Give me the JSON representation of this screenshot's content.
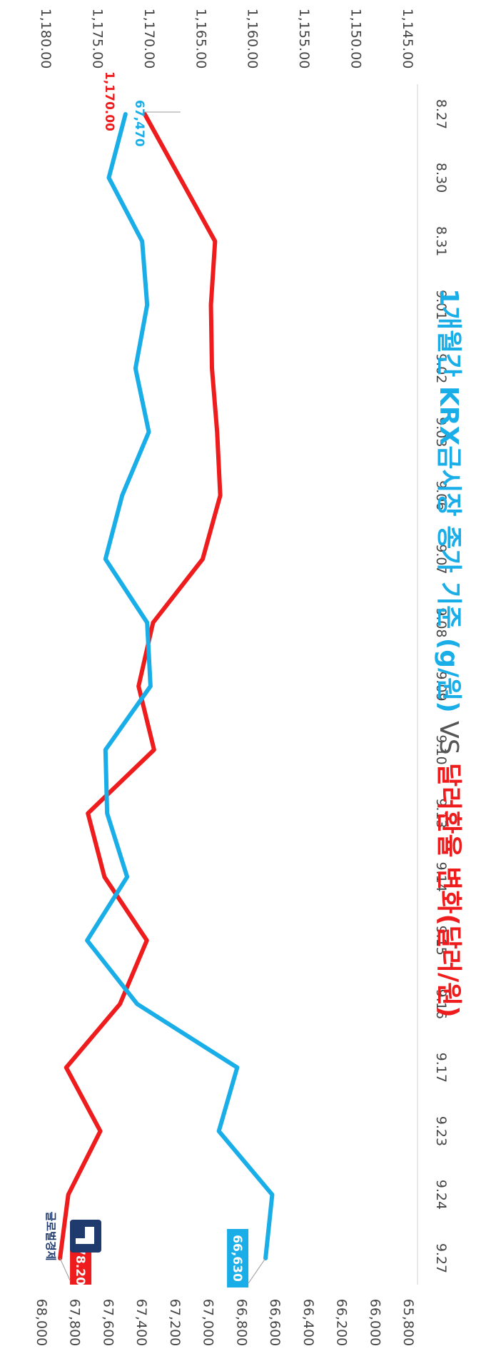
{
  "chart_data": {
    "type": "line",
    "title_parts": [
      {
        "text": "1개월간 KRX금시장 종가 기준 (g/원)",
        "color": "#1aaee8"
      },
      {
        "text": " VS ",
        "color": "#555555"
      },
      {
        "text": "달러환율 변화(달러/원)",
        "color": "#ee1c1c"
      }
    ],
    "categories": [
      "8.27",
      "8.30",
      "8.31",
      "9.01",
      "9.02",
      "9.03",
      "9.06",
      "9.07",
      "9.08",
      "9.09",
      "9.10",
      "9.13",
      "9.14",
      "9.15",
      "9.16",
      "9.17",
      "9.23",
      "9.24",
      "9.27"
    ],
    "series": [
      {
        "color": "#ee1c1c",
        "axis": "exchange",
        "values": [
          1170.0,
          1166.6,
          1163.2,
          1163.6,
          1163.5,
          1163.0,
          1162.7,
          1164.4,
          1169.2,
          1170.6,
          1169.1,
          1175.5,
          1173.9,
          1169.8,
          1172.4,
          1177.6,
          1174.3,
          1177.4,
          1178.2
        ]
      },
      {
        "color": "#1aaee8",
        "axis": "gold",
        "values": [
          67470,
          67570,
          67370,
          67340,
          67410,
          67330,
          67490,
          67590,
          67340,
          67320,
          67590,
          67580,
          67460,
          67700,
          67400,
          66800,
          66910,
          66590,
          66630
        ]
      }
    ],
    "exchange_axis": {
      "ticks": [
        "1,145.00",
        "1,150.00",
        "1,155.00",
        "1,160.00",
        "1,165.00",
        "1,170.00",
        "1,175.00",
        "1,180.00"
      ],
      "range": [
        1145,
        1180
      ]
    },
    "gold_axis": {
      "ticks": [
        "65,800",
        "66,000",
        "66,200",
        "66,400",
        "66,600",
        "66,800",
        "67,000",
        "67,200",
        "67,400",
        "67,600",
        "67,800",
        "68,000"
      ],
      "range": [
        65800,
        68000
      ]
    },
    "annotations": [
      {
        "series": 0,
        "index": 0,
        "text": "1,170.00",
        "style": "plain",
        "color": "#ee1c1c"
      },
      {
        "series": 1,
        "index": 0,
        "text": "67,470",
        "style": "plain",
        "color": "#1aaee8"
      },
      {
        "series": 0,
        "index": 18,
        "text": "1,178.20",
        "style": "boxed",
        "color": "#ee1c1c"
      },
      {
        "series": 1,
        "index": 18,
        "text": "66,630",
        "style": "boxed",
        "color": "#1aaee8"
      }
    ],
    "grid": false,
    "orientation": "rotated 90 degrees clockwise"
  },
  "brand": {
    "name": "글로벌경제",
    "logo_letter": "G",
    "logo_color": "#1f3b6e"
  }
}
